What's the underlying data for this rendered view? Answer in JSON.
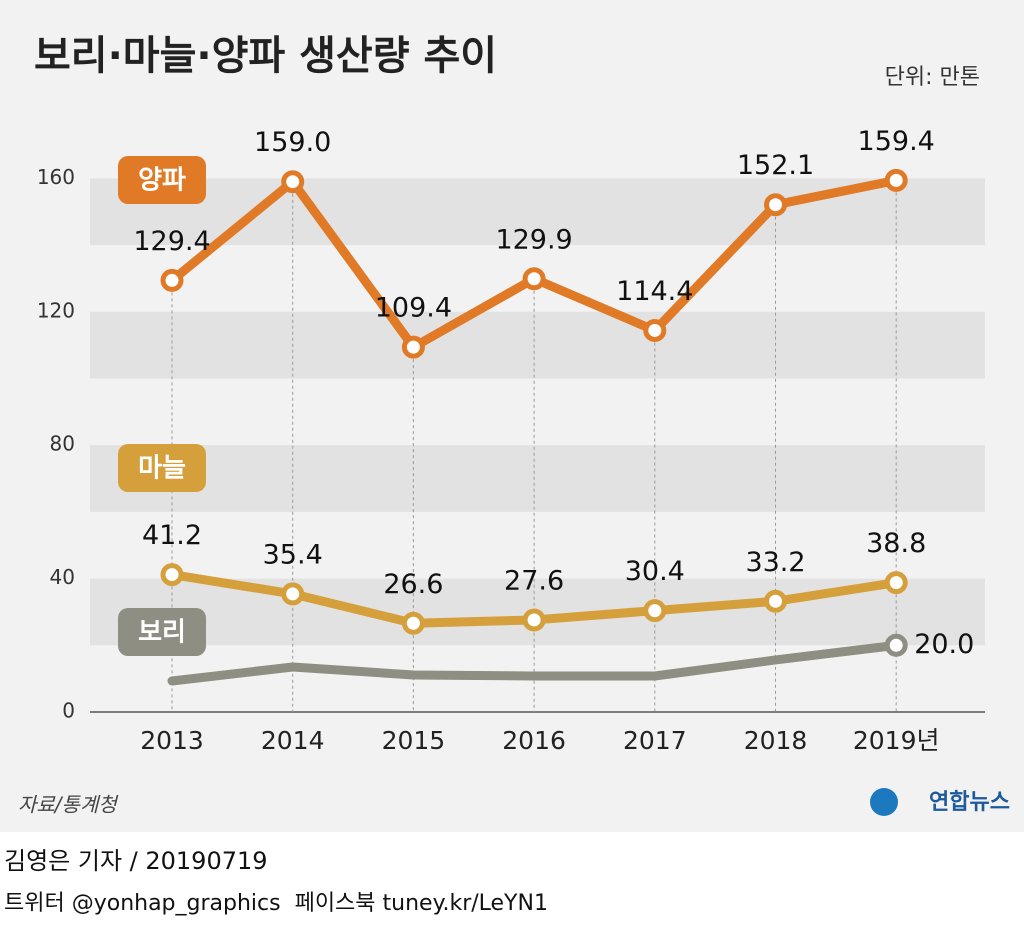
{
  "chart_data": {
    "type": "line",
    "title": "보리·마늘·양파 생산량 추이",
    "unit": "단위: 만톤",
    "categories": [
      "2013",
      "2014",
      "2015",
      "2016",
      "2017",
      "2018",
      "2019년"
    ],
    "series": [
      {
        "name": "양파",
        "color": "#e07a26",
        "values": [
          129.4,
          159.0,
          109.4,
          129.9,
          114.4,
          152.1,
          159.4
        ],
        "value_labels": [
          "129.4",
          "159.0",
          "109.4",
          "129.9",
          "114.4",
          "152.1",
          "159.4"
        ]
      },
      {
        "name": "마늘",
        "color": "#d5a03c",
        "values": [
          41.2,
          35.4,
          26.6,
          27.6,
          30.4,
          33.2,
          38.8
        ],
        "value_labels": [
          "41.2",
          "35.4",
          "26.6",
          "27.6",
          "30.4",
          "33.2",
          "38.8"
        ]
      },
      {
        "name": "보리",
        "color": "#8f8e82",
        "values": [
          9.3,
          13.5,
          11.1,
          10.8,
          10.8,
          15.6,
          20.0
        ],
        "value_labels": [
          null,
          null,
          null,
          null,
          null,
          null,
          "20.0"
        ]
      }
    ],
    "ylim": [
      0,
      176
    ],
    "yticks": [
      0,
      40,
      80,
      120,
      160
    ],
    "grid": true,
    "source": "자료/통계청",
    "logo": "연합뉴스",
    "byline": "김영은 기자 / 20190719",
    "social": "트위터 @yonhap_graphics  페이스북 tuney.kr/LeYN1"
  }
}
